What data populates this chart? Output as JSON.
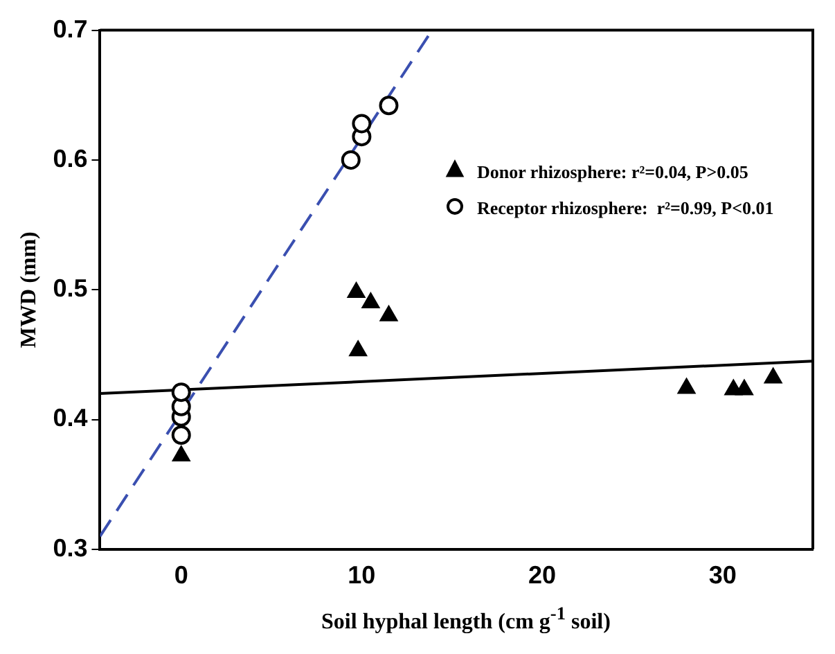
{
  "chart_data": {
    "type": "scatter",
    "xlabel": "Soil hyphal length (cm g$^{-1}$ soil)",
    "ylabel": "MWD (mm)",
    "xlim": [
      -4.5,
      35
    ],
    "xticks": [
      0,
      10,
      20,
      30
    ],
    "ylim": [
      0.3,
      0.7
    ],
    "yticks": [
      0.3,
      0.4,
      0.5,
      0.6,
      0.7
    ],
    "grid": false,
    "legend": "top right",
    "series": [
      {
        "name": "Donor rhizosphere: r²=0.04, P>0.05",
        "color": "#000000",
        "marker": "triangle",
        "x": [
          0,
          9.7,
          10.5,
          11.5,
          9.8,
          28,
          30.6,
          31.2,
          32.8
        ],
        "values": [
          0.372,
          0.498,
          0.49,
          0.48,
          0.453,
          0.424,
          0.423,
          0.423,
          0.432
        ]
      },
      {
        "name": "Receptor rhizosphere:  r²=0.99, P<0.01",
        "color": "#000000",
        "marker": "circle",
        "x": [
          0,
          0,
          0,
          0,
          9.4,
          10,
          10,
          11.5
        ],
        "values": [
          0.388,
          0.402,
          0.41,
          0.421,
          0.6,
          0.618,
          0.628,
          0.642
        ]
      },
      {
        "type": "line",
        "color": "#000000",
        "line_style": "solid",
        "marker": "none",
        "x": [
          -4.5,
          35
        ],
        "values": [
          0.42,
          0.445
        ]
      },
      {
        "type": "line",
        "color": "#3a4fb0",
        "line_style": "dashed",
        "marker": "none",
        "x": [
          -4.5,
          13.9
        ],
        "values": [
          0.31,
          0.7
        ]
      }
    ]
  }
}
